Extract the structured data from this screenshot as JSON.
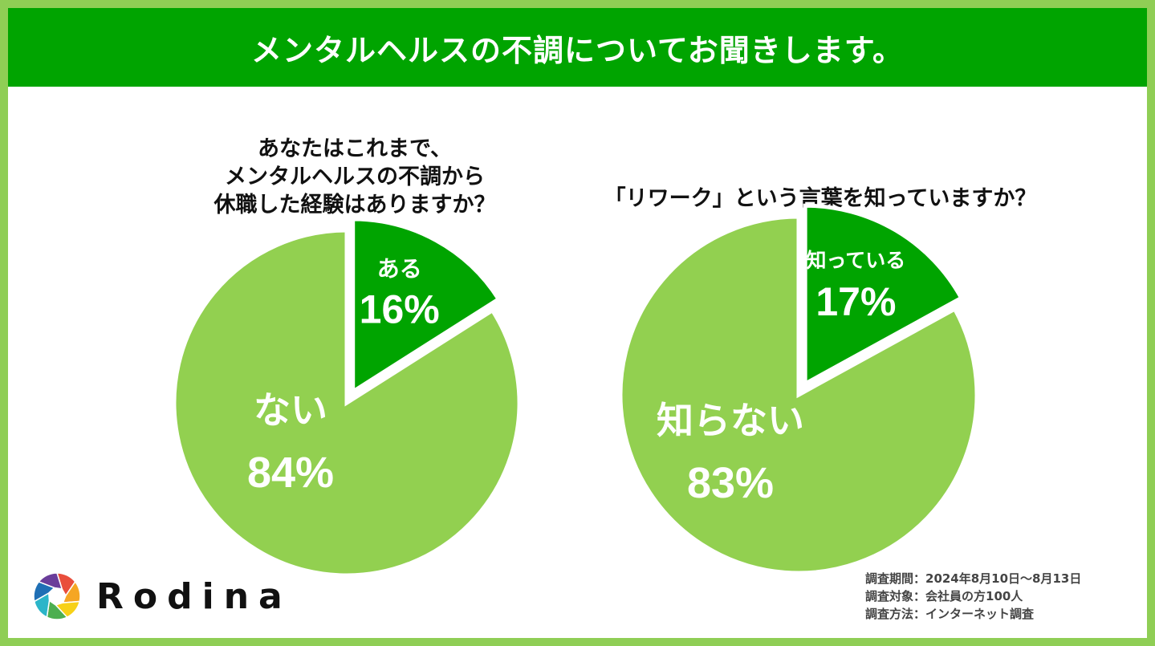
{
  "header": {
    "title": "メンタルヘルスの不調についてお聞きします。"
  },
  "chart_data": [
    {
      "type": "pie",
      "question_lines": [
        "あなたはこれまで、",
        "メンタルヘルスの不調から",
        "休職した経験はありますか？"
      ],
      "slices": [
        {
          "label": "ある",
          "value": 16,
          "display": "16%",
          "color": "#00a400"
        },
        {
          "label": "ない",
          "value": 84,
          "display": "84%",
          "color": "#92d050"
        }
      ]
    },
    {
      "type": "pie",
      "question_lines": [
        "「リワーク」という言葉を知っていますか？"
      ],
      "slices": [
        {
          "label": "知っている",
          "value": 17,
          "display": "17%",
          "color": "#00a400"
        },
        {
          "label": "知らない",
          "value": 83,
          "display": "83%",
          "color": "#92d050"
        }
      ]
    }
  ],
  "footer": {
    "lines": [
      "調査期間：2024年8月10日～8月13日",
      "調査対象：会社員の方100人",
      "調査方法：インターネット調査"
    ]
  },
  "logo": {
    "text": "Rodina",
    "colors": [
      "#e94e3c",
      "#f5a623",
      "#f7d117",
      "#4caf50",
      "#2bb5c9",
      "#1f6fb5",
      "#6a3d9a"
    ]
  }
}
